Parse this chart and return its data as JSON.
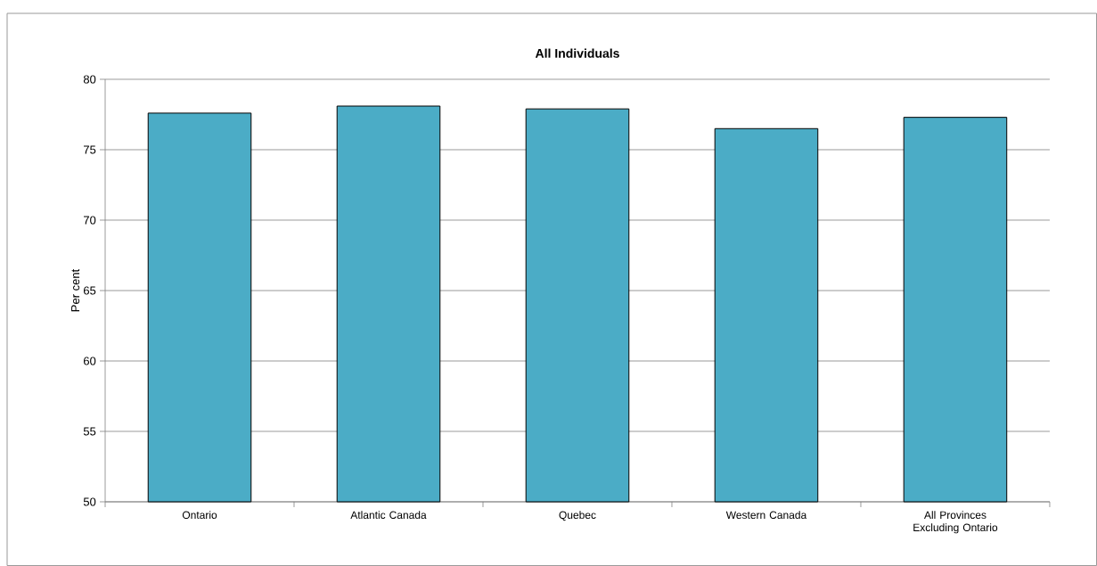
{
  "chart_data": {
    "type": "bar",
    "title": "All Individuals",
    "ylabel": "Per cent",
    "categories": [
      "Ontario",
      "Atlantic Canada",
      "Quebec",
      "Western Canada",
      "All Provinces Excluding Ontario"
    ],
    "values": [
      77.6,
      78.1,
      77.9,
      76.5,
      77.3
    ],
    "color": "#4bacc6",
    "ylim": [
      50,
      80
    ],
    "yticks": [
      50,
      55,
      60,
      65,
      70,
      75,
      80
    ],
    "grid": "y"
  }
}
